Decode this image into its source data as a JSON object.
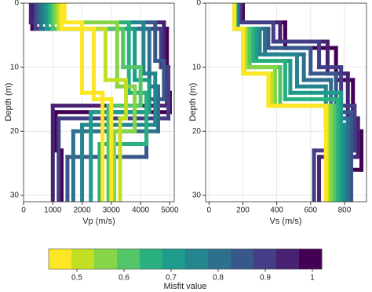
{
  "chart_data": [
    {
      "type": "step-profile",
      "ylabel": "Depth (m)",
      "xlabel": "Vp (m/s)",
      "xlim": [
        0,
        5150
      ],
      "xticks": [
        0,
        1000,
        2000,
        3000,
        4000,
        5000
      ],
      "ylim": [
        0,
        31
      ],
      "yticks": [
        0,
        10,
        20,
        30
      ],
      "y_inverted": true,
      "grid": true,
      "profiles": [
        {
          "misfit": 1.0,
          "depths": [
            0,
            4,
            14,
            17,
            23
          ],
          "values": [
            300,
            4900,
            5000,
            1100,
            1300
          ]
        },
        {
          "misfit": 0.96,
          "depths": [
            0,
            3,
            12,
            16
          ],
          "values": [
            250,
            4800,
            4900,
            1000
          ]
        },
        {
          "misfit": 0.9,
          "depths": [
            0,
            4,
            10,
            18
          ],
          "values": [
            400,
            4700,
            4950,
            1200
          ]
        },
        {
          "misfit": 0.85,
          "depths": [
            0,
            3,
            9,
            15,
            24
          ],
          "values": [
            500,
            4500,
            4800,
            4200,
            1500
          ]
        },
        {
          "misfit": 0.8,
          "depths": [
            0,
            4,
            13,
            20
          ],
          "values": [
            600,
            4300,
            4600,
            1700
          ]
        },
        {
          "misfit": 0.75,
          "depths": [
            0,
            3,
            11,
            19
          ],
          "values": [
            700,
            4100,
            4500,
            2000
          ]
        },
        {
          "misfit": 0.7,
          "depths": [
            0,
            4,
            12,
            17
          ],
          "values": [
            800,
            3800,
            4300,
            2300
          ]
        },
        {
          "misfit": 0.65,
          "depths": [
            0,
            3,
            14,
            22
          ],
          "values": [
            900,
            3600,
            4200,
            2600
          ]
        },
        {
          "misfit": 0.6,
          "depths": [
            0,
            4,
            10,
            16
          ],
          "values": [
            1000,
            3400,
            4000,
            2900
          ]
        },
        {
          "misfit": 0.56,
          "depths": [
            0,
            3,
            13,
            20
          ],
          "values": [
            1100,
            3200,
            3800,
            3100
          ]
        },
        {
          "misfit": 0.52,
          "depths": [
            0,
            4,
            12,
            18
          ],
          "values": [
            1200,
            2800,
            3500,
            3300
          ]
        },
        {
          "misfit": 0.48,
          "depths": [
            0,
            4,
            15
          ],
          "values": [
            1300,
            2400,
            3000
          ]
        },
        {
          "misfit": 0.45,
          "depths": [
            0,
            3,
            14
          ],
          "values": [
            1400,
            2000,
            2700
          ]
        }
      ]
    },
    {
      "type": "step-profile",
      "ylabel": "Depth (m)",
      "xlabel": "Vs (m/s)",
      "xlim": [
        -20,
        930
      ],
      "xticks": [
        0,
        200,
        400,
        600,
        800
      ],
      "ylim": [
        0,
        31
      ],
      "yticks": [
        0,
        10,
        20,
        30
      ],
      "y_inverted": true,
      "grid": true,
      "profiles": [
        {
          "misfit": 1.0,
          "depths": [
            0,
            3,
            7,
            12,
            20,
            26
          ],
          "values": [
            200,
            450,
            750,
            850,
            900,
            700
          ]
        },
        {
          "misfit": 0.95,
          "depths": [
            0,
            3,
            6,
            11,
            18,
            24
          ],
          "values": [
            190,
            420,
            700,
            820,
            880,
            650
          ]
        },
        {
          "misfit": 0.9,
          "depths": [
            0,
            3,
            6,
            10,
            16,
            23
          ],
          "values": [
            180,
            380,
            650,
            780,
            860,
            620
          ]
        },
        {
          "misfit": 0.85,
          "depths": [
            0,
            4,
            7,
            11,
            17
          ],
          "values": [
            170,
            350,
            600,
            750,
            840
          ]
        },
        {
          "misfit": 0.8,
          "depths": [
            0,
            4,
            8,
            12,
            18
          ],
          "values": [
            170,
            330,
            560,
            720,
            820
          ]
        },
        {
          "misfit": 0.75,
          "depths": [
            0,
            4,
            8,
            13,
            19
          ],
          "values": [
            160,
            300,
            520,
            690,
            800
          ]
        },
        {
          "misfit": 0.7,
          "depths": [
            0,
            4,
            9,
            14
          ],
          "values": [
            160,
            280,
            480,
            780
          ]
        },
        {
          "misfit": 0.65,
          "depths": [
            0,
            4,
            9,
            15
          ],
          "values": [
            155,
            260,
            450,
            760
          ]
        },
        {
          "misfit": 0.6,
          "depths": [
            0,
            4,
            10,
            16
          ],
          "values": [
            150,
            240,
            420,
            740
          ]
        },
        {
          "misfit": 0.55,
          "depths": [
            0,
            4,
            10,
            16
          ],
          "values": [
            150,
            220,
            390,
            720
          ]
        },
        {
          "misfit": 0.5,
          "depths": [
            0,
            4,
            11,
            16
          ],
          "values": [
            150,
            210,
            370,
            700
          ]
        },
        {
          "misfit": 0.45,
          "depths": [
            0,
            4,
            11,
            16
          ],
          "values": [
            150,
            200,
            350,
            690
          ]
        }
      ]
    }
  ],
  "colorbar": {
    "label": "Misfit value",
    "clim": [
      0.44,
      1.02
    ],
    "ticks": [
      0.5,
      0.6,
      0.7,
      0.8,
      0.9,
      1
    ],
    "colormap": [
      "#fde725",
      "#c2df23",
      "#86d549",
      "#52c569",
      "#2ab07f",
      "#1e9b8a",
      "#25858e",
      "#2d708e",
      "#38588c",
      "#433e85",
      "#482173",
      "#440154"
    ]
  }
}
